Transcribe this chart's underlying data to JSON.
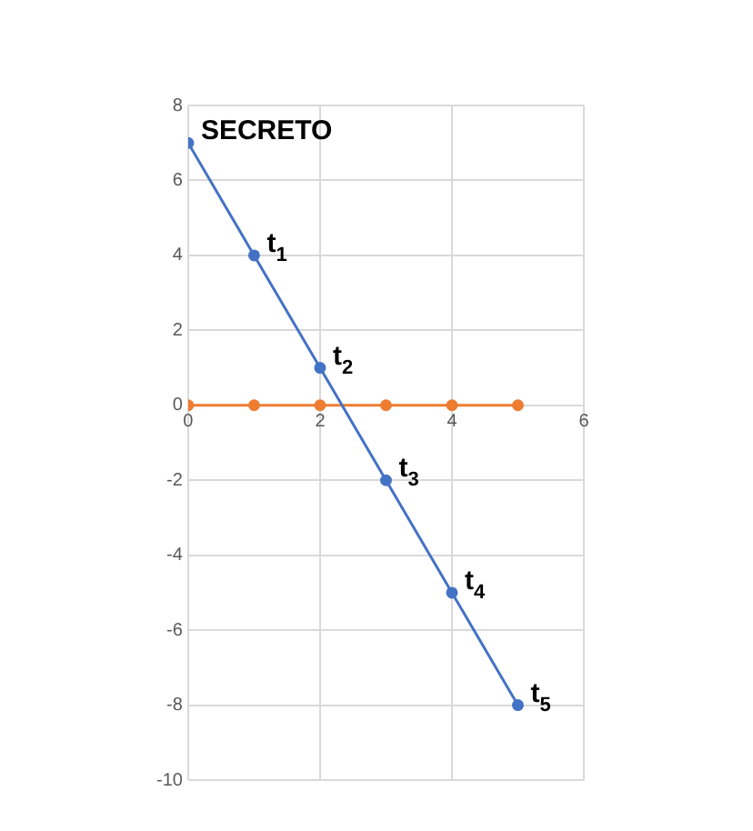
{
  "chart_data": {
    "type": "line",
    "series": [
      {
        "color": "#4472c4",
        "x": [
          0,
          1,
          2,
          3,
          4,
          5
        ],
        "values": [
          7,
          4,
          1,
          -2,
          -5,
          -8
        ]
      },
      {
        "color": "#ed7d31",
        "x": [
          0,
          1,
          2,
          3,
          4,
          5
        ],
        "values": [
          0,
          0,
          0,
          0,
          0,
          0
        ]
      }
    ],
    "xlim": [
      0,
      6
    ],
    "xticks": [
      0,
      2,
      4,
      6
    ],
    "ylim": [
      -10,
      8
    ],
    "yticks": [
      -10,
      -8,
      -6,
      -4,
      -2,
      0,
      2,
      4,
      6,
      8
    ],
    "grid": true,
    "legend": false,
    "marker": "circle",
    "line_style": "solid",
    "annotations": [
      {
        "text": "SECRETO",
        "x": 0,
        "y": 7
      },
      {
        "text": "t$_{1}$",
        "x": 1,
        "y": 4
      },
      {
        "text": "t$_{2}$",
        "x": 2,
        "y": 1
      },
      {
        "text": "t$_{3}$",
        "x": 3,
        "y": -2
      },
      {
        "text": "t$_{4}$",
        "x": 4,
        "y": -5
      },
      {
        "text": "t$_{5}$",
        "x": 5,
        "y": -8
      }
    ]
  }
}
